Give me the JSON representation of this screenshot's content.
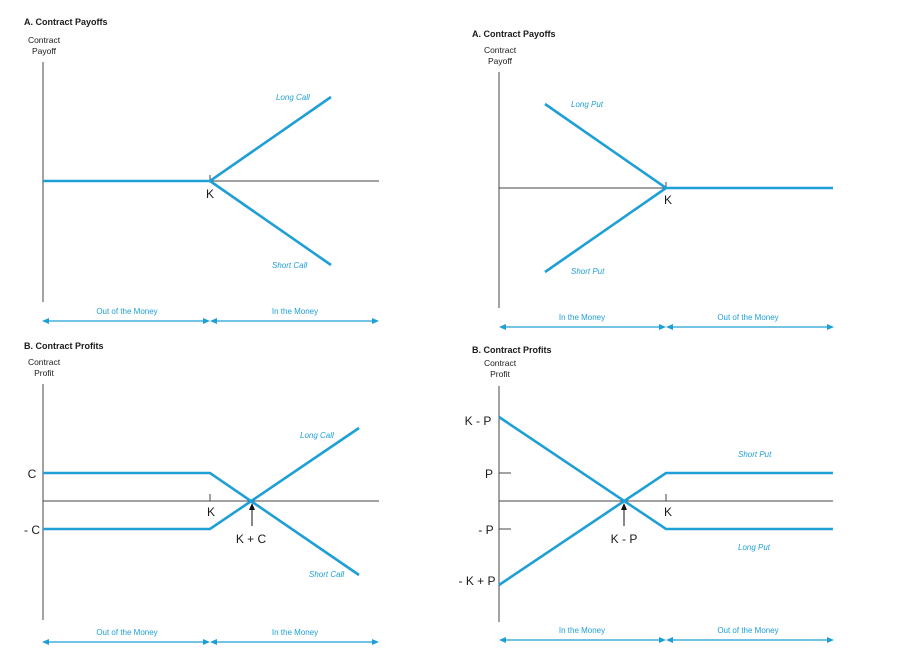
{
  "panels": {
    "call_payoff": {
      "title": "A. Contract Payoffs",
      "ylabel_line1": "Contract",
      "ylabel_line2": "Payoff",
      "strike_label": "K",
      "long_label": "Long Call",
      "short_label": "Short Call",
      "left_region": "Out of the Money",
      "right_region": "In the Money"
    },
    "put_payoff": {
      "title": "A. Contract Payoffs",
      "ylabel_line1": "Contract",
      "ylabel_line2": "Payoff",
      "strike_label": "K",
      "long_label": "Long Put",
      "short_label": "Short Put",
      "left_region": "In the Money",
      "right_region": "Out of the Money"
    },
    "call_profit": {
      "title": "B. Contract Profits",
      "ylabel_line1": "Contract",
      "ylabel_line2": "Profit",
      "strike_label": "K",
      "premium_label": "C",
      "neg_premium_label": "- C",
      "breakeven_label": "K + C",
      "long_label": "Long Call",
      "short_label": "Short Call",
      "left_region": "Out of the Money",
      "right_region": "In the Money"
    },
    "put_profit": {
      "title": "B. Contract Profits",
      "ylabel_line1": "Contract",
      "ylabel_line2": "Profit",
      "strike_label": "K",
      "max_label": "K - P",
      "premium_label": "P",
      "neg_premium_label": "- P",
      "min_label": "- K + P",
      "breakeven_label": "K - P",
      "short_label": "Short Put",
      "long_label": "Long Put",
      "left_region": "In the Money",
      "right_region": "Out of the Money"
    }
  },
  "colors": {
    "curve": "#1e9fd6",
    "axis": "#444444",
    "text": "#1a1a1a"
  }
}
